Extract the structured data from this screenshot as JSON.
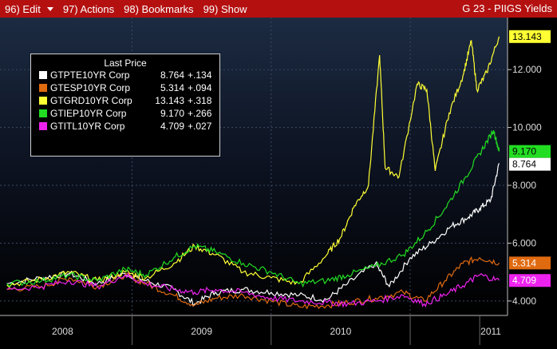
{
  "menubar": {
    "items": [
      "96) Edit",
      "97) Actions",
      "98) Bookmarks",
      "99) Show"
    ],
    "title": "G 23 - PIIGS Yields"
  },
  "legend": {
    "title": "Last Price",
    "entries": [
      {
        "name": "GTPTE10YR Corp",
        "value": "8.764",
        "change": "+.134",
        "color": "#ffffff"
      },
      {
        "name": "GTESP10YR Corp",
        "value": "5.314",
        "change": "+.094",
        "color": "#e06a10"
      },
      {
        "name": "GTGRD10YR Corp",
        "value": "13.143",
        "change": "+.318",
        "color": "#ffff33"
      },
      {
        "name": "GTIEP10YR Corp",
        "value": "9.170",
        "change": "+.266",
        "color": "#22dd22"
      },
      {
        "name": "GTITL10YR Corp",
        "value": "4.709",
        "change": "+.027",
        "color": "#ee22ee"
      }
    ]
  },
  "chart_data": {
    "type": "line",
    "title": "G 23 - PIIGS Yields",
    "xlabel": "",
    "ylabel": "",
    "x_ticks": [
      "2008",
      "2009",
      "2010",
      "2011"
    ],
    "y_ticks": [
      "4.000",
      "6.000",
      "8.000",
      "10.000",
      "12.000"
    ],
    "ylim": [
      3.5,
      13.8
    ],
    "y_axis_side": "right",
    "legend_position": "top-left",
    "grid": true,
    "series": [
      {
        "name": "GTPTE10YR Corp",
        "color": "#ffffff",
        "last_label": "8.764",
        "points": [
          [
            2007.6,
            4.6
          ],
          [
            2007.85,
            4.8
          ],
          [
            2008.05,
            4.95
          ],
          [
            2008.25,
            4.6
          ],
          [
            2008.45,
            4.95
          ],
          [
            2008.6,
            4.7
          ],
          [
            2008.8,
            4.4
          ],
          [
            2008.95,
            3.9
          ],
          [
            2009.1,
            4.3
          ],
          [
            2009.3,
            4.4
          ],
          [
            2009.5,
            4.3
          ],
          [
            2009.7,
            4.2
          ],
          [
            2009.9,
            4.05
          ],
          [
            2010.05,
            4.6
          ],
          [
            2010.25,
            5.3
          ],
          [
            2010.35,
            4.5
          ],
          [
            2010.5,
            5.5
          ],
          [
            2010.65,
            6.0
          ],
          [
            2010.8,
            6.6
          ],
          [
            2010.92,
            6.9
          ],
          [
            2011.0,
            7.2
          ],
          [
            2011.08,
            7.5
          ],
          [
            2011.14,
            8.764
          ]
        ]
      },
      {
        "name": "GTESP10YR Corp",
        "color": "#e06a10",
        "last_label": "5.314",
        "points": [
          [
            2007.6,
            4.4
          ],
          [
            2007.85,
            4.5
          ],
          [
            2008.05,
            4.8
          ],
          [
            2008.25,
            4.5
          ],
          [
            2008.45,
            4.9
          ],
          [
            2008.6,
            4.6
          ],
          [
            2008.8,
            4.2
          ],
          [
            2008.95,
            3.85
          ],
          [
            2009.1,
            4.1
          ],
          [
            2009.3,
            4.2
          ],
          [
            2009.5,
            4.0
          ],
          [
            2009.7,
            3.8
          ],
          [
            2009.9,
            3.85
          ],
          [
            2010.05,
            3.95
          ],
          [
            2010.25,
            4.1
          ],
          [
            2010.45,
            4.3
          ],
          [
            2010.6,
            4.0
          ],
          [
            2010.75,
            4.7
          ],
          [
            2010.88,
            5.3
          ],
          [
            2011.0,
            5.5
          ],
          [
            2011.14,
            5.314
          ]
        ]
      },
      {
        "name": "GTGRD10YR Corp",
        "color": "#ffff33",
        "last_label": "13.143",
        "points": [
          [
            2007.6,
            4.55
          ],
          [
            2007.85,
            4.75
          ],
          [
            2008.05,
            5.0
          ],
          [
            2008.25,
            4.7
          ],
          [
            2008.45,
            5.0
          ],
          [
            2008.6,
            4.8
          ],
          [
            2008.8,
            5.3
          ],
          [
            2008.95,
            5.9
          ],
          [
            2009.1,
            5.6
          ],
          [
            2009.3,
            5.0
          ],
          [
            2009.5,
            4.8
          ],
          [
            2009.7,
            4.6
          ],
          [
            2009.9,
            5.6
          ],
          [
            2010.0,
            6.2
          ],
          [
            2010.1,
            7.3
          ],
          [
            2010.2,
            8.0
          ],
          [
            2010.28,
            12.5
          ],
          [
            2010.32,
            8.6
          ],
          [
            2010.42,
            8.3
          ],
          [
            2010.55,
            11.5
          ],
          [
            2010.62,
            11.3
          ],
          [
            2010.68,
            8.5
          ],
          [
            2010.78,
            10.5
          ],
          [
            2010.88,
            11.8
          ],
          [
            2010.94,
            13.0
          ],
          [
            2010.98,
            11.3
          ],
          [
            2011.05,
            11.9
          ],
          [
            2011.14,
            13.143
          ]
        ]
      },
      {
        "name": "GTIEP10YR Corp",
        "color": "#22dd22",
        "last_label": "9.170",
        "points": [
          [
            2007.6,
            4.6
          ],
          [
            2007.85,
            4.7
          ],
          [
            2008.05,
            4.9
          ],
          [
            2008.25,
            4.7
          ],
          [
            2008.45,
            5.1
          ],
          [
            2008.6,
            4.9
          ],
          [
            2008.8,
            5.5
          ],
          [
            2008.95,
            5.9
          ],
          [
            2009.1,
            5.7
          ],
          [
            2009.3,
            5.3
          ],
          [
            2009.5,
            5.0
          ],
          [
            2009.7,
            4.6
          ],
          [
            2009.9,
            4.7
          ],
          [
            2010.05,
            4.9
          ],
          [
            2010.25,
            5.2
          ],
          [
            2010.45,
            5.6
          ],
          [
            2010.6,
            6.3
          ],
          [
            2010.75,
            7.2
          ],
          [
            2010.9,
            8.3
          ],
          [
            2011.0,
            9.1
          ],
          [
            2011.1,
            9.9
          ],
          [
            2011.14,
            9.17
          ]
        ]
      },
      {
        "name": "GTITL10YR Corp",
        "color": "#ee22ee",
        "last_label": "4.709",
        "points": [
          [
            2007.6,
            4.4
          ],
          [
            2007.85,
            4.5
          ],
          [
            2008.05,
            4.7
          ],
          [
            2008.25,
            4.5
          ],
          [
            2008.45,
            4.9
          ],
          [
            2008.6,
            4.6
          ],
          [
            2008.8,
            4.4
          ],
          [
            2008.95,
            4.3
          ],
          [
            2009.1,
            4.4
          ],
          [
            2009.3,
            4.3
          ],
          [
            2009.5,
            4.1
          ],
          [
            2009.7,
            4.0
          ],
          [
            2009.9,
            3.95
          ],
          [
            2010.05,
            3.9
          ],
          [
            2010.25,
            4.0
          ],
          [
            2010.45,
            4.2
          ],
          [
            2010.6,
            3.9
          ],
          [
            2010.75,
            4.2
          ],
          [
            2010.9,
            4.6
          ],
          [
            2011.0,
            4.9
          ],
          [
            2011.14,
            4.709
          ]
        ]
      }
    ]
  }
}
